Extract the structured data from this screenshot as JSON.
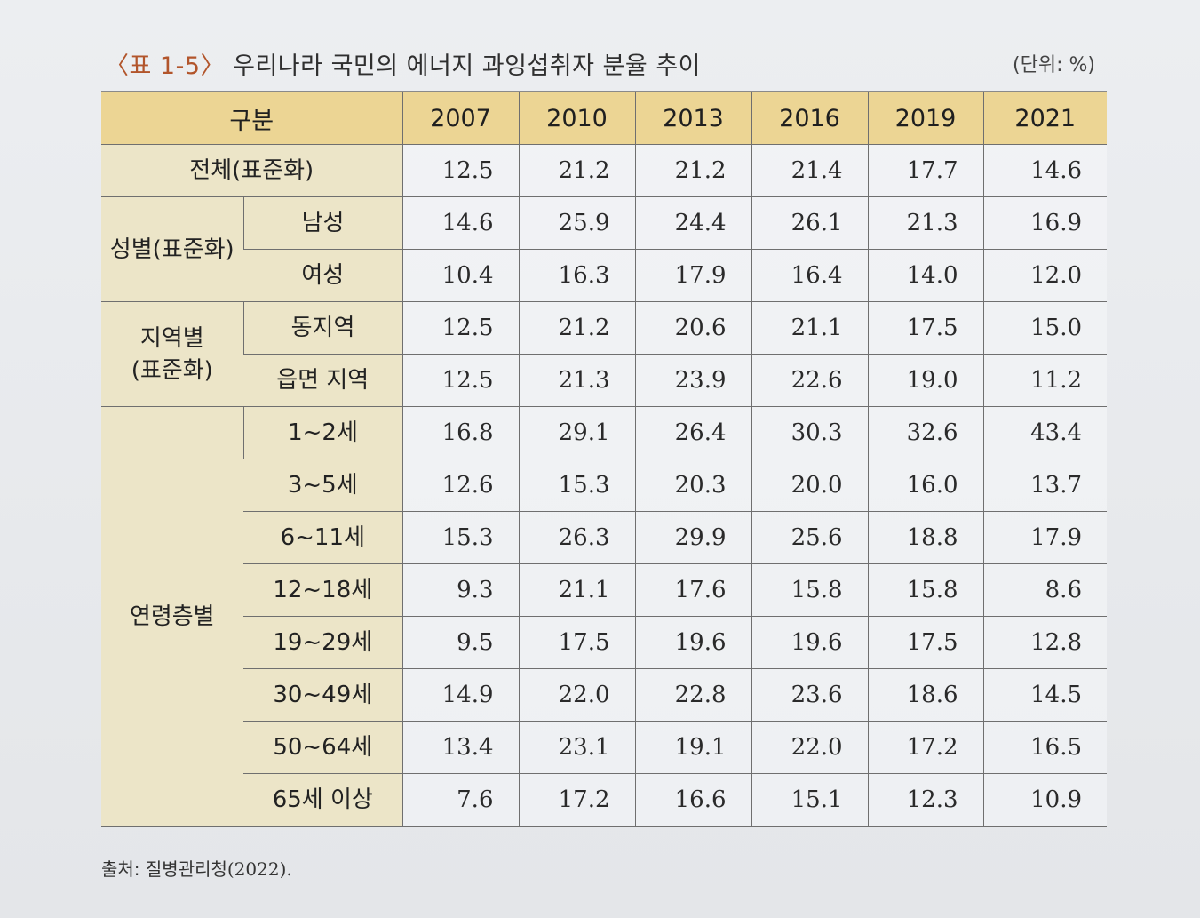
{
  "title": {
    "label": "〈표 1-5〉",
    "text": "우리나라 국민의 에너지 과잉섭취자 분율 추이",
    "unit": "(단위: %)"
  },
  "header": {
    "category": "구분",
    "years": [
      "2007",
      "2010",
      "2013",
      "2016",
      "2019",
      "2021"
    ]
  },
  "groups": {
    "total": "전체(표준화)",
    "sex": "성별(표준화)",
    "region_line1": "지역별",
    "region_line2": "(표준화)",
    "age": "연령층별"
  },
  "rows": [
    {
      "label": "전체(표준화)",
      "values": [
        "12.5",
        "21.2",
        "21.2",
        "21.4",
        "17.7",
        "14.6"
      ]
    },
    {
      "label": "남성",
      "values": [
        "14.6",
        "25.9",
        "24.4",
        "26.1",
        "21.3",
        "16.9"
      ]
    },
    {
      "label": "여성",
      "values": [
        "10.4",
        "16.3",
        "17.9",
        "16.4",
        "14.0",
        "12.0"
      ]
    },
    {
      "label": "동지역",
      "values": [
        "12.5",
        "21.2",
        "20.6",
        "21.1",
        "17.5",
        "15.0"
      ]
    },
    {
      "label": "읍면 지역",
      "values": [
        "12.5",
        "21.3",
        "23.9",
        "22.6",
        "19.0",
        "11.2"
      ]
    },
    {
      "label": "1~2세",
      "values": [
        "16.8",
        "29.1",
        "26.4",
        "30.3",
        "32.6",
        "43.4"
      ]
    },
    {
      "label": "3~5세",
      "values": [
        "12.6",
        "15.3",
        "20.3",
        "20.0",
        "16.0",
        "13.7"
      ]
    },
    {
      "label": "6~11세",
      "values": [
        "15.3",
        "26.3",
        "29.9",
        "25.6",
        "18.8",
        "17.9"
      ]
    },
    {
      "label": "12~18세",
      "values": [
        "9.3",
        "21.1",
        "17.6",
        "15.8",
        "15.8",
        "8.6"
      ]
    },
    {
      "label": "19~29세",
      "values": [
        "9.5",
        "17.5",
        "19.6",
        "19.6",
        "17.5",
        "12.8"
      ]
    },
    {
      "label": "30~49세",
      "values": [
        "14.9",
        "22.0",
        "22.8",
        "23.6",
        "18.6",
        "14.5"
      ]
    },
    {
      "label": "50~64세",
      "values": [
        "13.4",
        "23.1",
        "19.1",
        "22.0",
        "17.2",
        "16.5"
      ]
    },
    {
      "label": "65세 이상",
      "values": [
        "7.6",
        "17.2",
        "16.6",
        "15.1",
        "12.3",
        "10.9"
      ]
    }
  ],
  "source": {
    "prefix": "출처: 질병관리청",
    "year": "(2022)."
  }
}
